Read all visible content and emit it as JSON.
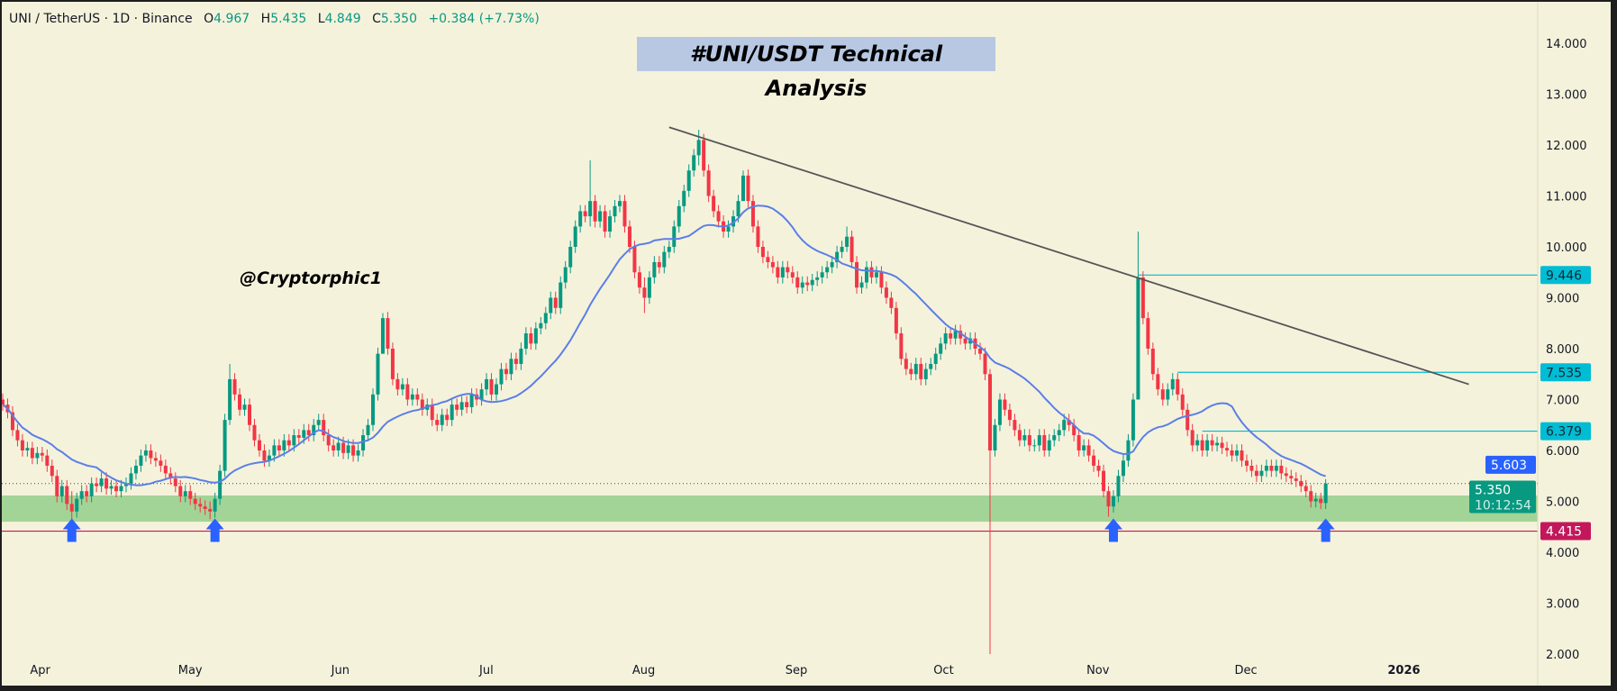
{
  "header": {
    "symbol": "UNI / TetherUS · 1D · Binance",
    "o_label": "O",
    "o": "4.967",
    "h_label": "H",
    "h": "5.435",
    "l_label": "L",
    "l": "4.849",
    "c_label": "C",
    "c": "5.350",
    "change": "+0.384 (+7.73%)"
  },
  "title": "#UNI/USDT Technical Analysis",
  "watermark": "@Cryptorphic1",
  "colors": {
    "background": "#f5f2dc",
    "up": "#089981",
    "down": "#f23645",
    "ma": "#5b7fe6",
    "trendline": "#555555",
    "level": "#00bcd4",
    "support_zone": "#a3d497",
    "support_line": "#c2185b",
    "arrow": "#2962ff",
    "ma_tag": "#2962ff",
    "price_tag": "#089981"
  },
  "chart_data": {
    "type": "candlestick",
    "title": "#UNI/USDT Technical Analysis",
    "xlabel": "",
    "ylabel": "",
    "start_date": "2025-03-25",
    "interval": "1D",
    "open_first": 7.0,
    "close": [
      6.9,
      6.75,
      6.4,
      6.2,
      6.0,
      6.05,
      5.85,
      5.95,
      5.9,
      5.7,
      5.5,
      5.1,
      5.3,
      4.95,
      4.8,
      5.05,
      5.2,
      5.1,
      5.35,
      5.3,
      5.45,
      5.25,
      5.3,
      5.2,
      5.3,
      5.35,
      5.55,
      5.7,
      5.9,
      6.0,
      5.85,
      5.8,
      5.7,
      5.55,
      5.45,
      5.3,
      5.1,
      5.2,
      5.05,
      4.95,
      4.9,
      4.85,
      4.8,
      5.05,
      5.6,
      6.6,
      7.4,
      7.1,
      6.8,
      6.9,
      6.5,
      6.2,
      6.0,
      5.8,
      5.9,
      6.1,
      6.0,
      6.2,
      6.1,
      6.3,
      6.25,
      6.4,
      6.3,
      6.5,
      6.6,
      6.3,
      6.1,
      6.0,
      6.15,
      5.95,
      6.1,
      5.9,
      6.0,
      6.3,
      6.5,
      7.1,
      7.9,
      8.6,
      8.0,
      7.4,
      7.2,
      7.3,
      7.0,
      7.1,
      7.0,
      6.8,
      6.9,
      6.6,
      6.5,
      6.7,
      6.6,
      6.9,
      6.8,
      6.95,
      6.85,
      7.1,
      7.0,
      7.2,
      7.4,
      7.1,
      7.3,
      7.6,
      7.5,
      7.8,
      7.7,
      8.0,
      8.3,
      8.1,
      8.4,
      8.5,
      8.7,
      9.0,
      8.8,
      9.3,
      9.6,
      10.0,
      10.4,
      10.7,
      10.6,
      10.9,
      10.5,
      10.7,
      10.3,
      10.6,
      10.8,
      10.9,
      10.4,
      10.0,
      9.5,
      9.2,
      9.0,
      9.4,
      9.7,
      9.6,
      9.9,
      10.0,
      10.4,
      10.8,
      11.1,
      11.5,
      11.8,
      12.1,
      11.5,
      11.0,
      10.7,
      10.5,
      10.3,
      10.4,
      10.6,
      10.9,
      11.4,
      10.9,
      10.4,
      10.0,
      9.8,
      9.7,
      9.6,
      9.4,
      9.6,
      9.5,
      9.4,
      9.2,
      9.3,
      9.25,
      9.35,
      9.4,
      9.5,
      9.6,
      9.7,
      9.9,
      10.0,
      10.2,
      9.7,
      9.2,
      9.3,
      9.6,
      9.4,
      9.5,
      9.2,
      9.0,
      8.8,
      8.3,
      7.8,
      7.6,
      7.5,
      7.7,
      7.4,
      7.6,
      7.7,
      7.9,
      8.1,
      8.3,
      8.2,
      8.35,
      8.2,
      8.1,
      8.2,
      8.0,
      7.9,
      7.5,
      6.0,
      6.5,
      7.0,
      6.8,
      6.6,
      6.4,
      6.2,
      6.3,
      6.1,
      6.1,
      6.3,
      6.0,
      6.2,
      6.3,
      6.4,
      6.6,
      6.5,
      6.3,
      6.0,
      6.1,
      5.9,
      5.7,
      5.6,
      5.2,
      4.9,
      5.1,
      5.5,
      5.8,
      6.2,
      7.0,
      9.4,
      8.6,
      8.0,
      7.5,
      7.2,
      7.0,
      7.2,
      7.4,
      7.1,
      6.8,
      6.4,
      6.1,
      6.2,
      6.0,
      6.2,
      6.1,
      6.15,
      6.05,
      6.0,
      5.9,
      6.0,
      5.8,
      5.7,
      5.6,
      5.5,
      5.6,
      5.7,
      5.6,
      5.7,
      5.55,
      5.5,
      5.45,
      5.4,
      5.3,
      5.2,
      5.0,
      5.05,
      4.967,
      5.35
    ],
    "wick_extremes": {
      "14": [
        5.2,
        4.6
      ],
      "42": [
        5.0,
        4.65
      ],
      "46": [
        7.7,
        6.5
      ],
      "77": [
        8.7,
        7.9
      ],
      "119": [
        11.7,
        10.4
      ],
      "130": [
        9.4,
        8.7
      ],
      "141": [
        12.3,
        11.6
      ],
      "150": [
        11.5,
        10.9
      ],
      "171": [
        10.4,
        9.9
      ],
      "200": [
        7.6,
        2.0
      ],
      "224": [
        5.3,
        4.7
      ],
      "230": [
        10.3,
        7.0
      ],
      "268": [
        5.435,
        4.849
      ]
    },
    "moving_average": {
      "period": 20,
      "last_value": "5.603"
    },
    "ylim": [
      2,
      14
    ],
    "y_ticks": [
      "2.000",
      "3.000",
      "4.000",
      "5.000",
      "6.000",
      "7.000",
      "8.000",
      "9.000",
      "10.000",
      "11.000",
      "12.000",
      "13.000",
      "14.000"
    ],
    "x_ticks": [
      {
        "label": "Apr",
        "date": "2025-04-01"
      },
      {
        "label": "May",
        "date": "2025-05-01"
      },
      {
        "label": "Jun",
        "date": "2025-06-01"
      },
      {
        "label": "Jul",
        "date": "2025-07-01"
      },
      {
        "label": "Aug",
        "date": "2025-08-01"
      },
      {
        "label": "Sep",
        "date": "2025-09-01"
      },
      {
        "label": "Oct",
        "date": "2025-10-01"
      },
      {
        "label": "Nov",
        "date": "2025-11-01"
      },
      {
        "label": "Dec",
        "date": "2025-12-01"
      },
      {
        "label": "2026",
        "date": "2026-01-01",
        "bold": true
      }
    ],
    "trendline": [
      {
        "date": "2025-08-07",
        "price": 12.35
      },
      {
        "date": "2026-01-16",
        "price": 7.3
      }
    ],
    "levels": [
      {
        "price": 9.446,
        "label": "9.446",
        "from": "2025-11-10"
      },
      {
        "price": 7.535,
        "label": "7.535",
        "from": "2025-11-18"
      },
      {
        "price": 6.379,
        "label": "6.379",
        "from": "2025-11-23"
      }
    ],
    "support_zone": [
      4.6,
      5.115
    ],
    "support_line": {
      "price": 4.415,
      "label": "4.415"
    },
    "current_price": {
      "price": 5.35,
      "label": "5.350",
      "countdown": "10:12:54"
    },
    "arrows": [
      "2025-04-08",
      "2025-05-07",
      "2025-11-05",
      "2025-12-18"
    ],
    "grid": false
  }
}
